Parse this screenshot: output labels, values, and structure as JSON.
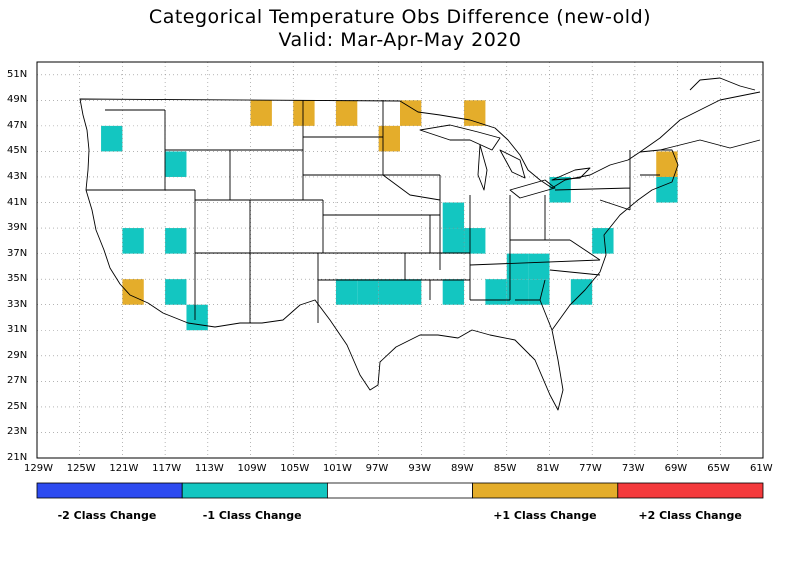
{
  "title_line1": "Categorical Temperature Obs Difference (new-old)",
  "title_line2": "Valid: Mar-Apr-May 2020",
  "lon_labels": [
    "129W",
    "125W",
    "121W",
    "117W",
    "113W",
    "109W",
    "105W",
    "101W",
    "97W",
    "93W",
    "89W",
    "85W",
    "81W",
    "77W",
    "73W",
    "69W",
    "65W",
    "61W"
  ],
  "lat_labels": [
    "51N",
    "49N",
    "47N",
    "45N",
    "43N",
    "41N",
    "39N",
    "37N",
    "35N",
    "33N",
    "31N",
    "29N",
    "27N",
    "25N",
    "23N",
    "21N"
  ],
  "colors": {
    "minus2": "#2d4bf0",
    "minus1": "#13c6c1",
    "zero": "#ffffff",
    "plus1": "#e4ad2b",
    "plus2": "#f43a3c"
  },
  "legend": [
    {
      "key": "minus2",
      "label": "-2 Class Change"
    },
    {
      "key": "minus1",
      "label": "-1 Class Change"
    },
    {
      "key": "zero",
      "label": ""
    },
    {
      "key": "plus1",
      "label": "+1 Class Change"
    },
    {
      "key": "plus2",
      "label": "+2 Class Change"
    }
  ],
  "grid_cells": [
    {
      "lon": -122,
      "lat": 46,
      "class": "minus1"
    },
    {
      "lon": -116,
      "lat": 44,
      "class": "minus1"
    },
    {
      "lon": -120,
      "lat": 38,
      "class": "minus1"
    },
    {
      "lon": -116,
      "lat": 38,
      "class": "minus1"
    },
    {
      "lon": -120,
      "lat": 34,
      "class": "plus1"
    },
    {
      "lon": -116,
      "lat": 34,
      "class": "minus1"
    },
    {
      "lon": -114,
      "lat": 32,
      "class": "minus1"
    },
    {
      "lon": -108,
      "lat": 48,
      "class": "plus1"
    },
    {
      "lon": -104,
      "lat": 48,
      "class": "plus1"
    },
    {
      "lon": -100,
      "lat": 48,
      "class": "plus1"
    },
    {
      "lon": -96,
      "lat": 46,
      "class": "plus1"
    },
    {
      "lon": -94,
      "lat": 48,
      "class": "plus1"
    },
    {
      "lon": -88,
      "lat": 48,
      "class": "plus1"
    },
    {
      "lon": -90,
      "lat": 40,
      "class": "minus1"
    },
    {
      "lon": -90,
      "lat": 38,
      "class": "minus1"
    },
    {
      "lon": -88,
      "lat": 38,
      "class": "minus1"
    },
    {
      "lon": -100,
      "lat": 34,
      "class": "minus1"
    },
    {
      "lon": -98,
      "lat": 34,
      "class": "minus1"
    },
    {
      "lon": -96,
      "lat": 34,
      "class": "minus1"
    },
    {
      "lon": -94,
      "lat": 34,
      "class": "minus1"
    },
    {
      "lon": -90,
      "lat": 34,
      "class": "minus1"
    },
    {
      "lon": -86,
      "lat": 34,
      "class": "minus1"
    },
    {
      "lon": -84,
      "lat": 36,
      "class": "minus1"
    },
    {
      "lon": -82,
      "lat": 36,
      "class": "minus1"
    },
    {
      "lon": -84,
      "lat": 34,
      "class": "minus1"
    },
    {
      "lon": -82,
      "lat": 34,
      "class": "minus1"
    },
    {
      "lon": -78,
      "lat": 34,
      "class": "minus1"
    },
    {
      "lon": -80,
      "lat": 42,
      "class": "minus1"
    },
    {
      "lon": -76,
      "lat": 38,
      "class": "minus1"
    },
    {
      "lon": -70,
      "lat": 44,
      "class": "plus1"
    },
    {
      "lon": -70,
      "lat": 42,
      "class": "minus1"
    }
  ]
}
